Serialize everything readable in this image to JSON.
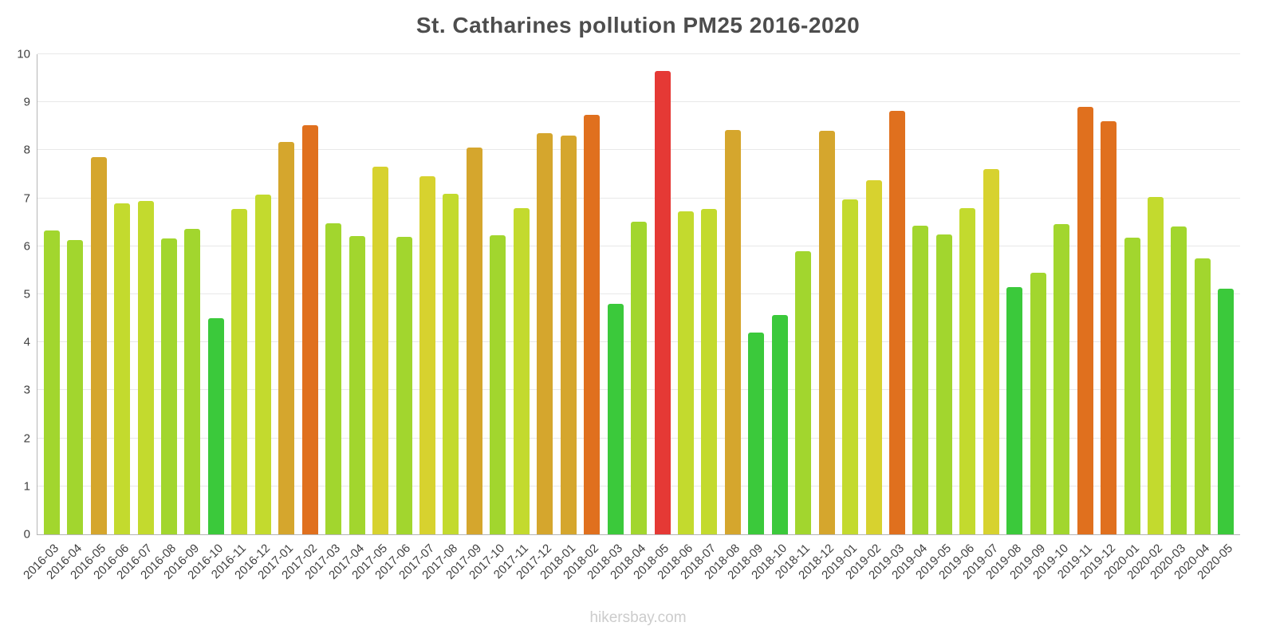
{
  "chart_data": {
    "type": "bar",
    "title": "St. Catharines pollution PM25 2016-2020",
    "xlabel": "",
    "ylabel": "",
    "ylim": [
      0,
      10
    ],
    "yticks": [
      0,
      1,
      2,
      3,
      4,
      5,
      6,
      7,
      8,
      9,
      10
    ],
    "grid": "horizontal",
    "legend": "none",
    "categories": [
      "2016-03",
      "2016-04",
      "2016-05",
      "2016-06",
      "2016-07",
      "2016-08",
      "2016-09",
      "2016-10",
      "2016-11",
      "2016-12",
      "2017-01",
      "2017-02",
      "2017-03",
      "2017-04",
      "2017-05",
      "2017-06",
      "2017-07",
      "2017-08",
      "2017-09",
      "2017-10",
      "2017-11",
      "2017-12",
      "2018-01",
      "2018-02",
      "2018-03",
      "2018-04",
      "2018-05",
      "2018-06",
      "2018-07",
      "2018-08",
      "2018-09",
      "2018-10",
      "2018-11",
      "2018-12",
      "2019-01",
      "2019-02",
      "2019-03",
      "2019-04",
      "2019-05",
      "2019-06",
      "2019-07",
      "2019-08",
      "2019-09",
      "2019-10",
      "2019-11",
      "2019-12",
      "2020-01",
      "2020-02",
      "2020-03",
      "2020-04",
      "2020-05"
    ],
    "values": [
      6.33,
      6.13,
      7.85,
      6.9,
      6.95,
      6.16,
      6.36,
      4.5,
      6.78,
      7.08,
      8.17,
      8.53,
      6.48,
      6.21,
      7.65,
      6.19,
      7.46,
      7.1,
      8.05,
      6.23,
      6.8,
      8.36,
      8.31,
      8.74,
      4.8,
      6.52,
      9.65,
      6.72,
      6.78,
      8.42,
      4.2,
      4.57,
      5.9,
      8.4,
      6.98,
      7.38,
      8.82,
      6.43,
      6.24,
      6.8,
      7.6,
      5.15,
      5.45,
      6.47,
      8.91,
      8.6,
      6.18,
      7.02,
      6.41,
      5.74,
      5.12
    ],
    "color_scale": [
      {
        "max": 5.3,
        "color": "#3bc93b"
      },
      {
        "max": 6.6,
        "color": "#a2d62e"
      },
      {
        "max": 7.25,
        "color": "#c3da2e"
      },
      {
        "max": 7.8,
        "color": "#d7d22f"
      },
      {
        "max": 8.5,
        "color": "#d5a62d"
      },
      {
        "max": 9.2,
        "color": "#e0701e"
      },
      {
        "max": 10,
        "color": "#e53935"
      }
    ]
  },
  "footer": "hikersbay.com"
}
